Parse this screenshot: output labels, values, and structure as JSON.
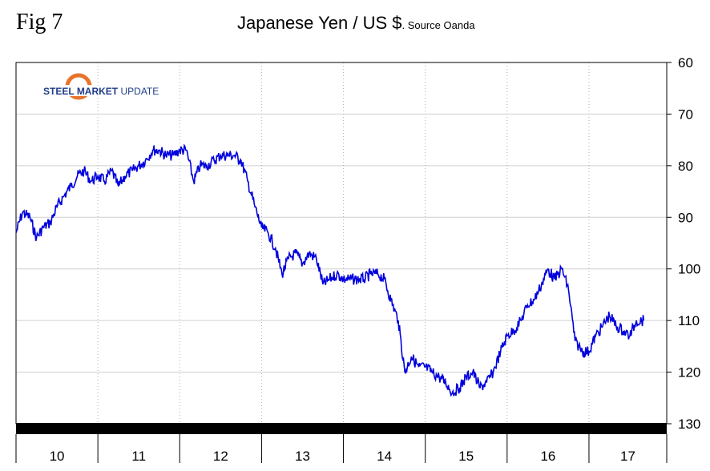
{
  "figure_label": "Fig 7",
  "logo": {
    "text_steel": "STEEL",
    "text_market": "MARKET",
    "text_update": "UPDATE",
    "accent": "#e8742c",
    "navy": "#1f3c88"
  },
  "chart_data": {
    "type": "line",
    "title": "Japanese Yen / US $",
    "subtitle": ". Source Oanda",
    "xlabel": "",
    "ylabel": "",
    "y_axis_inverted": true,
    "y_axis_side": "right",
    "ylim": [
      60,
      130
    ],
    "yticks": [
      "60",
      "70",
      "80",
      "90",
      "100",
      "110",
      "120",
      "130"
    ],
    "xlim": [
      2010.0,
      2017.95
    ],
    "xticks": [
      "10",
      "11",
      "12",
      "13",
      "14",
      "15",
      "16",
      "17"
    ],
    "grid": true,
    "legend": "none",
    "series_color": "#0000dd",
    "series": [
      {
        "x": [
          2010.0,
          2010.08,
          2010.17,
          2010.25,
          2010.33,
          2010.42,
          2010.5,
          2010.58,
          2010.67,
          2010.75,
          2010.83,
          2010.92,
          2011.0,
          2011.08,
          2011.17,
          2011.25,
          2011.33,
          2011.42,
          2011.5,
          2011.58,
          2011.67,
          2011.75,
          2011.83,
          2011.92,
          2012.0,
          2012.08,
          2012.17,
          2012.25,
          2012.33,
          2012.42,
          2012.5,
          2012.58,
          2012.67,
          2012.75,
          2012.83,
          2012.92,
          2013.0,
          2013.08,
          2013.17,
          2013.25,
          2013.33,
          2013.42,
          2013.5,
          2013.58,
          2013.67,
          2013.75,
          2013.83,
          2013.92,
          2014.0,
          2014.08,
          2014.17,
          2014.25,
          2014.33,
          2014.42,
          2014.5,
          2014.58,
          2014.67,
          2014.75,
          2014.83,
          2014.92,
          2015.0,
          2015.08,
          2015.17,
          2015.25,
          2015.33,
          2015.42,
          2015.5,
          2015.58,
          2015.67,
          2015.75,
          2015.83,
          2015.92,
          2016.0,
          2016.08,
          2016.17,
          2016.25,
          2016.33,
          2016.42,
          2016.5,
          2016.58,
          2016.67,
          2016.75,
          2016.83,
          2016.92,
          2017.0,
          2017.08,
          2017.17,
          2017.25,
          2017.33,
          2017.42,
          2017.5,
          2017.58,
          2017.67
        ],
        "values": [
          93,
          89,
          90,
          94,
          92,
          91,
          88,
          86,
          84,
          82,
          81,
          83,
          82,
          83,
          81,
          84,
          82,
          81,
          80,
          79,
          77,
          77,
          78,
          78,
          77,
          77,
          83,
          80,
          80,
          79,
          78,
          78,
          78,
          79,
          83,
          88,
          92,
          93,
          96,
          101,
          98,
          97,
          99,
          97,
          98,
          103,
          102,
          101,
          102,
          102,
          102,
          102,
          101,
          101,
          102,
          106,
          110,
          120,
          117,
          119,
          119,
          120,
          121,
          122,
          124,
          123,
          121,
          120,
          123,
          122,
          120,
          116,
          113,
          112,
          110,
          107,
          106,
          103,
          100,
          102,
          100,
          104,
          114,
          116,
          116,
          113,
          111,
          109,
          111,
          112,
          113,
          110,
          110
        ]
      }
    ]
  }
}
